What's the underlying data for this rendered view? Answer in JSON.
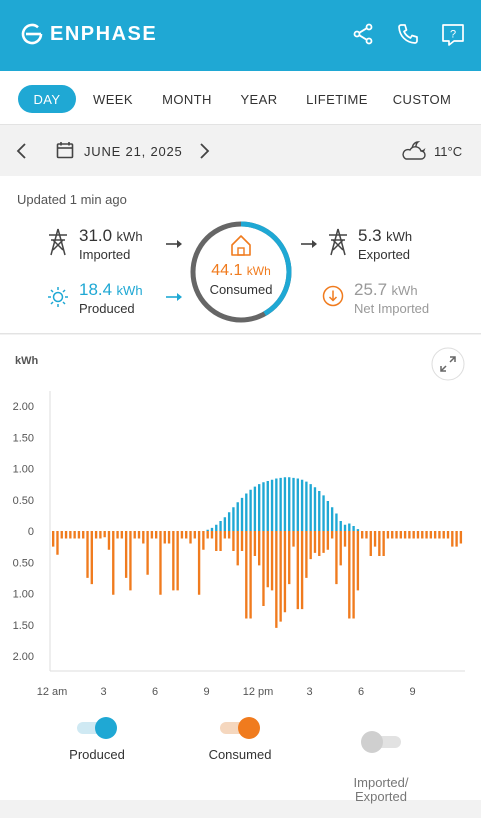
{
  "header": {
    "brand": "ENPHASE",
    "icons": [
      "share-icon",
      "phone-icon",
      "help-icon"
    ]
  },
  "tabs": [
    {
      "label": "DAY",
      "active": true
    },
    {
      "label": "WEEK",
      "active": false
    },
    {
      "label": "MONTH",
      "active": false
    },
    {
      "label": "YEAR",
      "active": false
    },
    {
      "label": "LIFETIME",
      "active": false
    },
    {
      "label": "CUSTOM",
      "active": false
    }
  ],
  "datebar": {
    "date": "JUNE 21, 2025",
    "temperature": "11°C",
    "weather_icon": "partly-cloudy-icon"
  },
  "summary": {
    "updated": "Updated 1 min ago",
    "imported": {
      "value": "31.0",
      "unit": "kWh",
      "label": "Imported"
    },
    "produced": {
      "value": "18.4",
      "unit": "kWh",
      "label": "Produced"
    },
    "consumed": {
      "value": "44.1",
      "unit": "kWh",
      "label": "Consumed"
    },
    "exported": {
      "value": "5.3",
      "unit": "kWh",
      "label": "Exported"
    },
    "net": {
      "value": "25.7",
      "unit": "kWh",
      "label": "Net Imported"
    },
    "ring_produced_fraction": 0.417
  },
  "colors": {
    "brand": "#1fa8d4",
    "consumed": "#f07b1e",
    "grey": "#999999",
    "topbar": "#1fa8d4"
  },
  "chart": {
    "y_unit": "kWh"
  },
  "chart_data": {
    "type": "bar",
    "y_ticks_top": [
      "2.00",
      "1.50",
      "1.00",
      "0.50",
      "0"
    ],
    "y_ticks_bottom": [
      "0.50",
      "1.00",
      "1.50",
      "2.00"
    ],
    "x_ticks": [
      "12 am",
      "3",
      "6",
      "9",
      "12 pm",
      "3",
      "6",
      "9"
    ],
    "ylim": [
      -2.2,
      2.2
    ],
    "intervals": 96,
    "produced": [
      0,
      0,
      0,
      0,
      0,
      0,
      0,
      0,
      0,
      0,
      0,
      0,
      0,
      0,
      0,
      0,
      0,
      0,
      0,
      0,
      0,
      0,
      0,
      0,
      0,
      0,
      0,
      0,
      0,
      0,
      0,
      0,
      0,
      0,
      0,
      0,
      0.02,
      0.05,
      0.1,
      0.16,
      0.22,
      0.3,
      0.38,
      0.46,
      0.53,
      0.6,
      0.66,
      0.71,
      0.75,
      0.78,
      0.8,
      0.82,
      0.84,
      0.85,
      0.86,
      0.86,
      0.85,
      0.84,
      0.82,
      0.79,
      0.75,
      0.7,
      0.64,
      0.57,
      0.48,
      0.38,
      0.28,
      0.16,
      0.1,
      0.12,
      0.08,
      0.03,
      0,
      0,
      0,
      0,
      0,
      0,
      0,
      0,
      0,
      0,
      0,
      0,
      0,
      0,
      0,
      0,
      0,
      0,
      0,
      0,
      0,
      0,
      0,
      0
    ],
    "consumed": [
      0.25,
      0.38,
      0.12,
      0.12,
      0.12,
      0.12,
      0.12,
      0.12,
      0.75,
      0.85,
      0.12,
      0.12,
      0.1,
      0.3,
      1.02,
      0.12,
      0.12,
      0.75,
      0.95,
      0.12,
      0.12,
      0.2,
      0.7,
      0.12,
      0.12,
      1.02,
      0.2,
      0.2,
      0.95,
      0.95,
      0.12,
      0.12,
      0.2,
      0.12,
      1.02,
      0.3,
      0.12,
      0.12,
      0.32,
      0.32,
      0.12,
      0.12,
      0.32,
      0.55,
      0.32,
      1.4,
      1.4,
      0.4,
      0.55,
      1.2,
      0.9,
      0.95,
      1.55,
      1.45,
      1.3,
      0.85,
      0.25,
      1.25,
      1.25,
      0.75,
      0.45,
      0.35,
      0.4,
      0.35,
      0.3,
      0.12,
      0.85,
      0.55,
      0.25,
      1.4,
      1.4,
      0.95,
      0.12,
      0.12,
      0.4,
      0.25,
      0.4,
      0.4,
      0.12,
      0.12,
      0.12,
      0.12,
      0.12,
      0.12,
      0.12,
      0.12,
      0.12,
      0.12,
      0.12,
      0.12,
      0.12,
      0.12,
      0.12,
      0.25,
      0.25,
      0.2
    ],
    "legend": [
      "Produced",
      "Consumed",
      "Imported/\nExported"
    ]
  },
  "legend": {
    "produced": {
      "label": "Produced",
      "on": true
    },
    "consumed": {
      "label": "Consumed",
      "on": true
    },
    "imported_exported": {
      "label": "Imported/\nExported",
      "on": false
    }
  }
}
